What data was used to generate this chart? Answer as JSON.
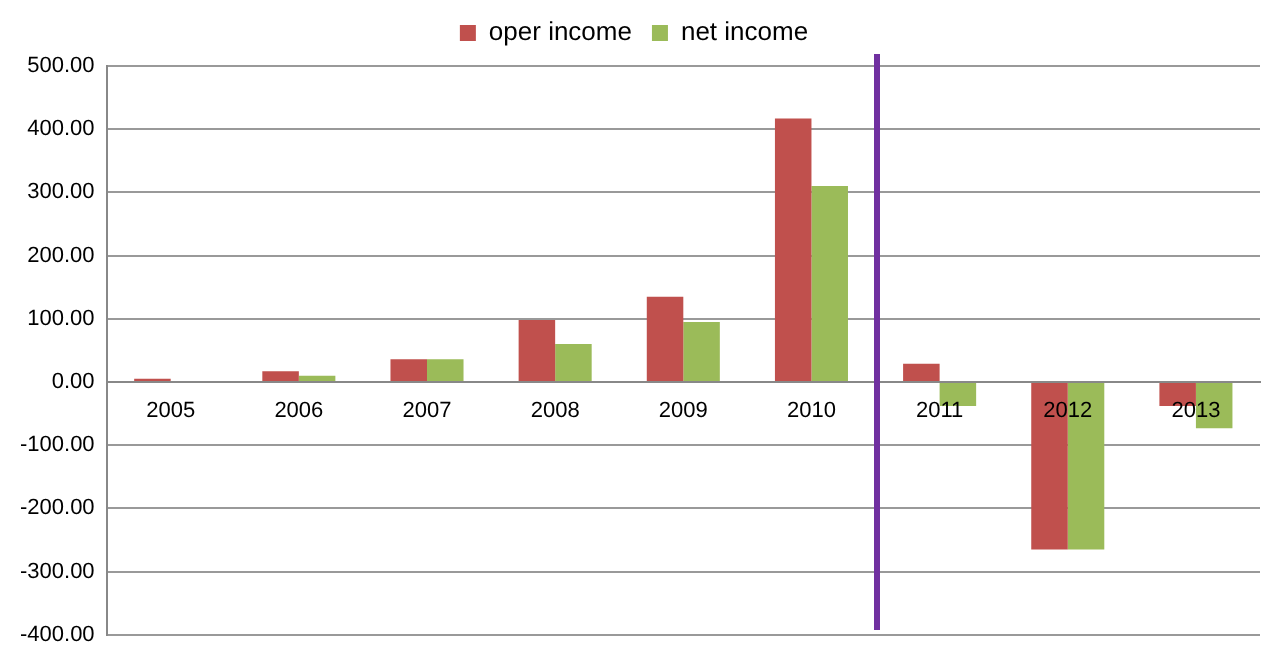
{
  "chart_data": {
    "type": "bar",
    "categories": [
      "2005",
      "2006",
      "2007",
      "2008",
      "2009",
      "2010",
      "2011",
      "2012",
      "2013"
    ],
    "series": [
      {
        "name": "oper income",
        "color": "#c0504d",
        "values": [
          5,
          17,
          36,
          98,
          135,
          417,
          29,
          -265,
          -38
        ]
      },
      {
        "name": "net income",
        "color": "#9bbb59",
        "values": [
          0,
          10,
          36,
          60,
          95,
          310,
          -38,
          -265,
          -73
        ]
      }
    ],
    "ylim": [
      -400,
      500
    ],
    "yticks": [
      {
        "value": -400,
        "label": "-400.00"
      },
      {
        "value": -300,
        "label": "-300.00"
      },
      {
        "value": -200,
        "label": "-200.00"
      },
      {
        "value": -100,
        "label": "-100.00"
      },
      {
        "value": 0,
        "label": "0.00"
      },
      {
        "value": 100,
        "label": "100.00"
      },
      {
        "value": 200,
        "label": "200.00"
      },
      {
        "value": 300,
        "label": "300.00"
      },
      {
        "value": 400,
        "label": "400.00"
      },
      {
        "value": 500,
        "label": "500.00"
      }
    ],
    "grid": "y",
    "legend": "top"
  }
}
